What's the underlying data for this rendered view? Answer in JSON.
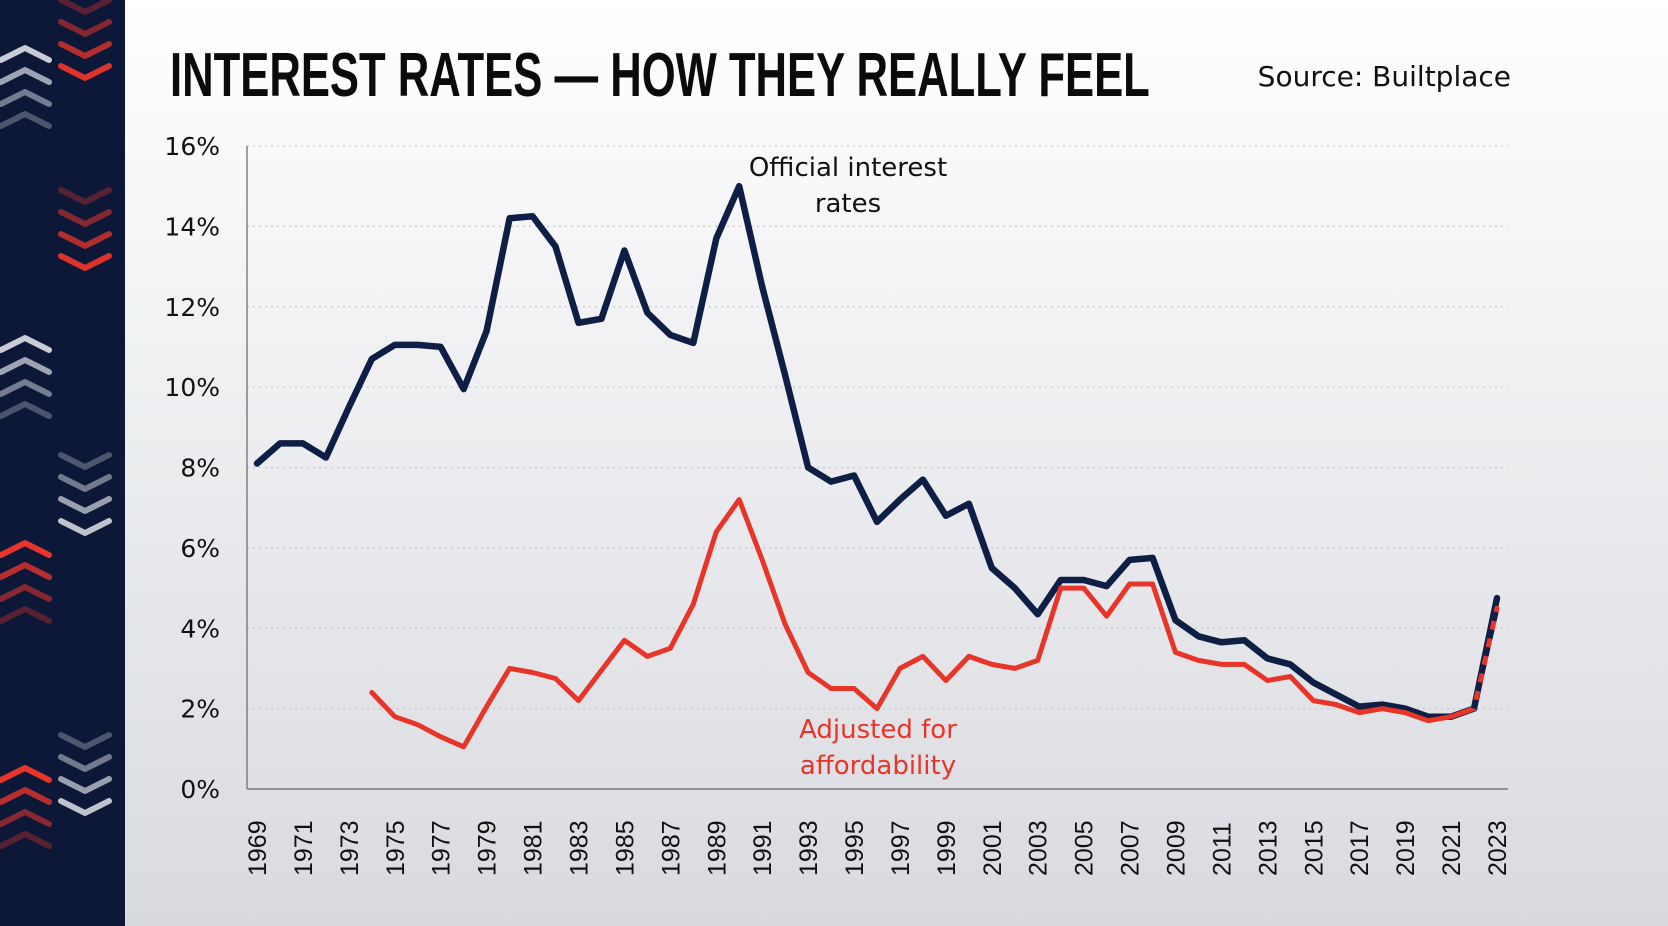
{
  "header": {
    "title": "INTEREST RATES — HOW THEY REALLY FEEL",
    "source": "Source: Builtplace"
  },
  "colors": {
    "sidebar": "#0d1838",
    "official": "#0e1e45",
    "adjusted": "#e8352a",
    "chevron_red": "#e8352a",
    "chevron_white": "#c9ccd6"
  },
  "chart_data": {
    "type": "line",
    "title": "INTEREST RATES — HOW THEY REALLY FEEL",
    "xlabel": "",
    "ylabel": "",
    "ylim": [
      0,
      16
    ],
    "yticks": [
      "0%",
      "2%",
      "4%",
      "6%",
      "8%",
      "10%",
      "12%",
      "14%",
      "16%"
    ],
    "xticks": [
      "1969",
      "1971",
      "1973",
      "1975",
      "1977",
      "1979",
      "1981",
      "1983",
      "1985",
      "1987",
      "1989",
      "1991",
      "1993",
      "1995",
      "1997",
      "1999",
      "2001",
      "2003",
      "2005",
      "2007",
      "2009",
      "2011",
      "2013",
      "2015",
      "2017",
      "2019",
      "2021",
      "2023"
    ],
    "grid": "horizontal dotted",
    "x": [
      1969,
      1970,
      1971,
      1972,
      1973,
      1974,
      1975,
      1976,
      1977,
      1978,
      1979,
      1980,
      1981,
      1982,
      1983,
      1984,
      1985,
      1986,
      1987,
      1988,
      1989,
      1990,
      1991,
      1992,
      1993,
      1994,
      1995,
      1996,
      1997,
      1998,
      1999,
      2000,
      2001,
      2002,
      2003,
      2004,
      2005,
      2006,
      2007,
      2008,
      2009,
      2010,
      2011,
      2012,
      2013,
      2014,
      2015,
      2016,
      2017,
      2018,
      2019,
      2020,
      2021,
      2022,
      2023
    ],
    "series": [
      {
        "name": "Official interest rates",
        "values": [
          8.1,
          8.6,
          8.6,
          8.25,
          9.5,
          10.7,
          11.05,
          11.05,
          11.0,
          9.95,
          11.4,
          14.2,
          14.25,
          13.5,
          11.6,
          11.7,
          13.4,
          11.85,
          11.3,
          11.1,
          13.7,
          15.0,
          12.5,
          10.3,
          8.0,
          7.65,
          7.8,
          6.65,
          7.2,
          7.7,
          6.8,
          7.1,
          5.5,
          5.0,
          4.35,
          5.2,
          5.2,
          5.05,
          5.7,
          5.75,
          4.2,
          3.8,
          3.65,
          3.7,
          3.25,
          3.1,
          2.65,
          2.35,
          2.05,
          2.1,
          2.0,
          1.8,
          1.8,
          2.0,
          4.75
        ]
      },
      {
        "name": "Adjusted for affordability",
        "values": [
          null,
          null,
          null,
          null,
          null,
          2.4,
          1.8,
          1.6,
          1.3,
          1.05,
          2.05,
          3.0,
          2.9,
          2.75,
          2.2,
          2.95,
          3.7,
          3.3,
          3.5,
          4.6,
          6.4,
          7.2,
          5.7,
          4.1,
          2.9,
          2.5,
          2.5,
          2.0,
          3.0,
          3.3,
          2.7,
          3.3,
          3.1,
          3.0,
          3.2,
          5.0,
          5.0,
          4.3,
          5.1,
          5.1,
          3.4,
          3.2,
          3.1,
          3.1,
          2.7,
          2.8,
          2.2,
          2.1,
          1.9,
          2.0,
          1.9,
          1.7,
          1.8,
          2.0,
          4.5
        ]
      }
    ],
    "annotations": {
      "official_line1": "Official interest",
      "official_line2": "rates",
      "adjusted_line1": "Adjusted for",
      "adjusted_line2": "affordability"
    }
  }
}
